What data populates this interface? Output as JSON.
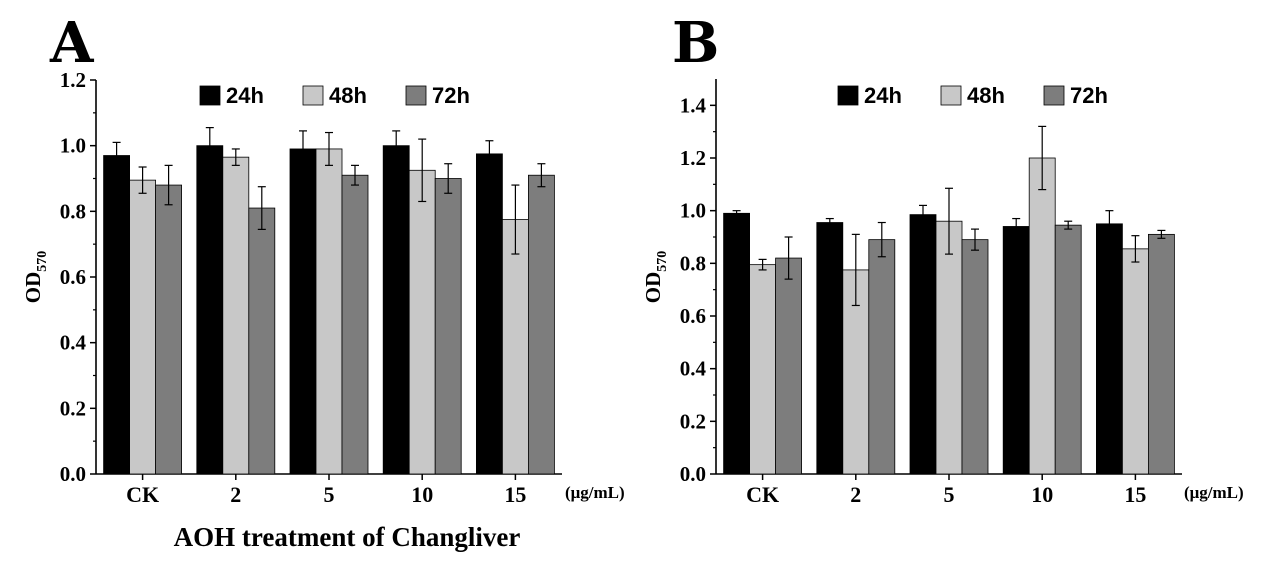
{
  "chart_data": [
    {
      "panel": "A",
      "type": "bar",
      "title": "",
      "ylabel": "OD",
      "ylabel_sub": "570",
      "xlabel": "AOH treatment of Changliver",
      "unit_label": "(μg/mL)",
      "categories": [
        "CK",
        "2",
        "5",
        "10",
        "15"
      ],
      "ylim": [
        0,
        1.2
      ],
      "yticks": [
        0.0,
        0.2,
        0.4,
        0.6,
        0.8,
        1.0,
        1.2
      ],
      "ytick_labels": [
        "0.0",
        "0.2",
        "0.4",
        "0.6",
        "0.8",
        "1.0",
        "1.2"
      ],
      "legend": [
        "24h",
        "48h",
        "72h"
      ],
      "series": [
        {
          "name": "24h",
          "color": "#000000",
          "values": [
            0.97,
            1.0,
            0.99,
            1.0,
            0.975
          ],
          "errors": [
            0.04,
            0.055,
            0.055,
            0.045,
            0.04
          ]
        },
        {
          "name": "48h",
          "color": "#c8c8c8",
          "values": [
            0.895,
            0.965,
            0.99,
            0.925,
            0.775
          ],
          "errors": [
            0.04,
            0.025,
            0.05,
            0.095,
            0.105
          ]
        },
        {
          "name": "72h",
          "color": "#7d7d7d",
          "values": [
            0.88,
            0.81,
            0.91,
            0.9,
            0.91
          ],
          "errors": [
            0.06,
            0.065,
            0.03,
            0.045,
            0.035
          ]
        }
      ]
    },
    {
      "panel": "B",
      "type": "bar",
      "title": "",
      "ylabel": "OD",
      "ylabel_sub": "570",
      "xlabel": "",
      "unit_label": "(μg/mL)",
      "categories": [
        "CK",
        "2",
        "5",
        "10",
        "15"
      ],
      "ylim": [
        0,
        1.5
      ],
      "yticks": [
        0.0,
        0.2,
        0.4,
        0.6,
        0.8,
        1.0,
        1.2,
        1.4
      ],
      "ytick_labels": [
        "0.0",
        "0.2",
        "0.4",
        "0.6",
        "0.8",
        "1.0",
        "1.2",
        "1.4"
      ],
      "legend": [
        "24h",
        "48h",
        "72h"
      ],
      "series": [
        {
          "name": "24h",
          "color": "#000000",
          "values": [
            0.99,
            0.955,
            0.985,
            0.94,
            0.95
          ],
          "errors": [
            0.01,
            0.015,
            0.035,
            0.03,
            0.05
          ]
        },
        {
          "name": "48h",
          "color": "#c8c8c8",
          "values": [
            0.795,
            0.775,
            0.96,
            1.2,
            0.855
          ],
          "errors": [
            0.02,
            0.135,
            0.125,
            0.12,
            0.05
          ]
        },
        {
          "name": "72h",
          "color": "#7d7d7d",
          "values": [
            0.82,
            0.89,
            0.89,
            0.945,
            0.91
          ],
          "errors": [
            0.08,
            0.065,
            0.04,
            0.015,
            0.015
          ]
        }
      ]
    }
  ]
}
